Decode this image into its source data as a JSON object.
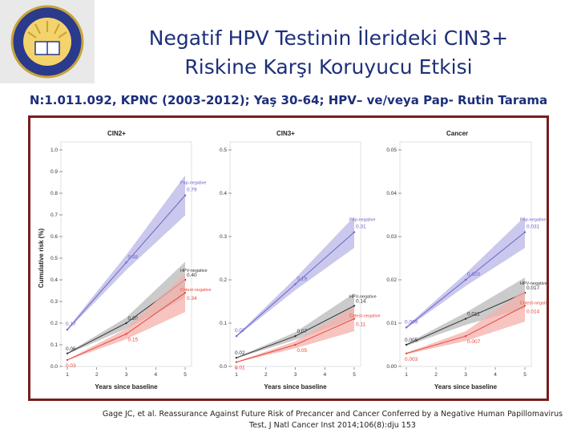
{
  "slide": {
    "title_line1": "Negatif HPV Testinin İlerideki CIN3+",
    "title_line2": "Riskine Karşı Koruyucu Etkisi",
    "subtitle": "N:1.011.092, KPNC (2003-2012); Yaş 30-64; HPV– ve/veya Pap- Rutin Tarama",
    "citation_line1": "Gage JC, et al. Reassurance Against Future Risk of Precancer and Cancer Conferred by a Negative Human Papillomavirus",
    "citation_line2": "Test, J Natl Cancer Inst 2014;106(8):dju 153"
  },
  "colors": {
    "pap": "#6a63c8",
    "hpv": "#333333",
    "cotest": "#e8463c",
    "frame": "#7a1c1c",
    "title": "#1d2f7a"
  },
  "chart_data": [
    {
      "type": "line",
      "title": "CIN2+",
      "xlabel": "Years since baseline",
      "ylabel": "Cumulative risk (%)",
      "x": [
        1,
        3,
        5
      ],
      "xticks": [
        "1",
        "2",
        "3",
        "4",
        "5"
      ],
      "ylim": [
        0,
        1.0
      ],
      "yticks": [
        "0.0",
        "0.1",
        "0.2",
        "0.3",
        "0.4",
        "0.5",
        "0.6",
        "0.7",
        "0.8",
        "0.9",
        "1.0"
      ],
      "series": [
        {
          "name": "Pap-negative",
          "values": [
            0.17,
            0.48,
            0.79
          ],
          "labels": [
            "0.17",
            "0.48",
            "0.79"
          ]
        },
        {
          "name": "HPV-negative",
          "values": [
            0.06,
            0.2,
            0.4
          ],
          "labels": [
            "0.06",
            "0.20",
            "0.40"
          ]
        },
        {
          "name": "Cotest-negative",
          "values": [
            0.03,
            0.15,
            0.34
          ],
          "labels": [
            "0.03",
            "0.15",
            "0.34"
          ]
        }
      ]
    },
    {
      "type": "line",
      "title": "CIN3+",
      "xlabel": "Years since baseline",
      "ylabel": "",
      "x": [
        1,
        3,
        5
      ],
      "xticks": [
        "1",
        "2",
        "3",
        "4",
        "5"
      ],
      "ylim": [
        0,
        0.5
      ],
      "yticks": [
        "0.0",
        "0.1",
        "0.2",
        "0.3",
        "0.4",
        "0.5"
      ],
      "series": [
        {
          "name": "Pap-negative",
          "values": [
            0.07,
            0.19,
            0.31
          ],
          "labels": [
            "0.07",
            "0.19",
            "0.31"
          ]
        },
        {
          "name": "HPV-negative",
          "values": [
            0.02,
            0.07,
            0.14
          ],
          "labels": [
            "0.02",
            "0.07",
            "0.14"
          ]
        },
        {
          "name": "Cotest-negative",
          "values": [
            0.01,
            0.05,
            0.11
          ],
          "labels": [
            "0.01",
            "0.05",
            "0.11"
          ]
        }
      ]
    },
    {
      "type": "line",
      "title": "Cancer",
      "xlabel": "Years since baseline",
      "ylabel": "",
      "x": [
        1,
        3,
        5
      ],
      "xticks": [
        "1",
        "2",
        "3",
        "4",
        "5"
      ],
      "ylim": [
        0,
        0.05
      ],
      "yticks": [
        "0.00",
        "0.01",
        "0.02",
        "0.03",
        "0.04",
        "0.05"
      ],
      "series": [
        {
          "name": "Pap-negative",
          "values": [
            0.009,
            0.02,
            0.031
          ],
          "labels": [
            "0.009",
            "0.020",
            "0.031"
          ]
        },
        {
          "name": "HPV-negative",
          "values": [
            0.005,
            0.011,
            0.017
          ],
          "labels": [
            "0.005",
            "0.011",
            "0.017"
          ]
        },
        {
          "name": "Cotest-negative",
          "values": [
            0.003,
            0.007,
            0.014
          ],
          "labels": [
            "0.003",
            "0.007",
            "0.014"
          ]
        }
      ]
    }
  ]
}
